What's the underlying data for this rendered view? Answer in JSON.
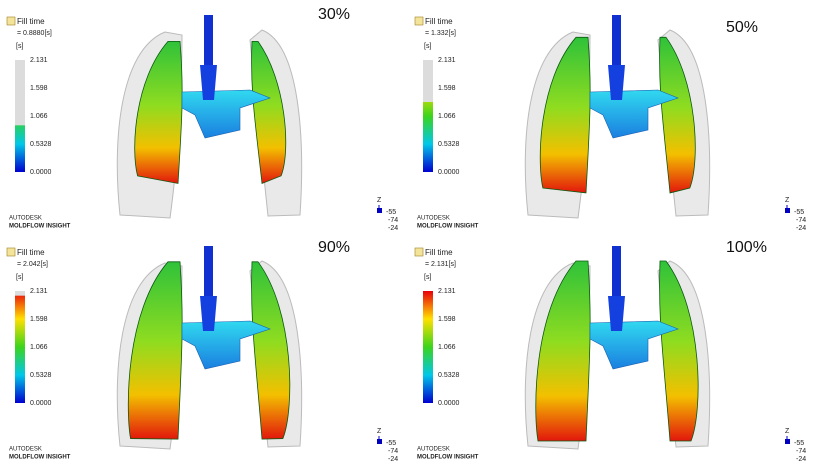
{
  "panels": [
    {
      "label": "30%",
      "result_name": "Fill time",
      "time": "= 0.8880[s]",
      "unit": "[s]",
      "scale": [
        "2.131",
        "1.598",
        "1.066",
        "0.5328",
        "0.0000"
      ],
      "brand": "AUTODESK",
      "product": "MOLDFLOW INSIGHT",
      "axis": [
        "Z",
        "-55",
        "-74",
        "-24"
      ]
    },
    {
      "label": "50%",
      "result_name": "Fill time",
      "time": "= 1.332[s]",
      "unit": "[s]",
      "scale": [
        "2.131",
        "1.598",
        "1.066",
        "0.5328",
        "0.0000"
      ],
      "brand": "AUTODESK",
      "product": "MOLDFLOW INSIGHT",
      "axis": [
        "Z",
        "-55",
        "-74",
        "-24"
      ]
    },
    {
      "label": "90%",
      "result_name": "Fill time",
      "time": "= 2.042[s]",
      "unit": "[s]",
      "scale": [
        "2.131",
        "1.598",
        "1.066",
        "0.5328",
        "0.0000"
      ],
      "brand": "AUTODESK",
      "product": "MOLDFLOW INSIGHT",
      "axis": [
        "Z",
        "-55",
        "-74",
        "-24"
      ]
    },
    {
      "label": "100%",
      "result_name": "Fill time",
      "time": "= 2.131[s]",
      "unit": "[s]",
      "scale": [
        "2.131",
        "1.598",
        "1.066",
        "0.5328",
        "0.0000"
      ],
      "brand": "AUTODESK",
      "product": "MOLDFLOW INSIGHT",
      "axis": [
        "Z",
        "-55",
        "-74",
        "-24"
      ]
    }
  ]
}
